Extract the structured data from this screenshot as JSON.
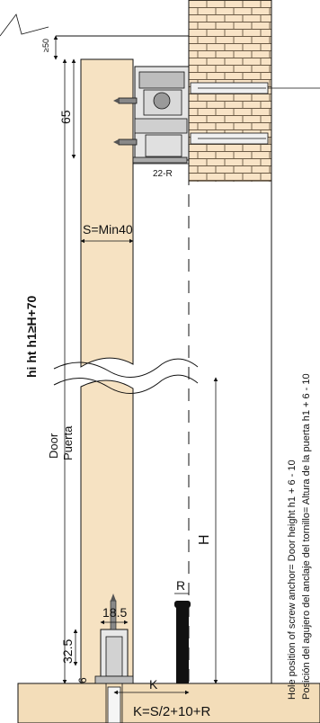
{
  "dimensions": {
    "top_gap": "≥50",
    "top_gap_small": "50",
    "bracket_height": "65",
    "offset": "22-R",
    "thickness": "S=Min40",
    "height_rule": "hi  ht h1≥H+70",
    "floor_gap": "R",
    "wall_height": "H",
    "guide_width": "18.5",
    "guide_height": "32.5",
    "guide_clearance": "6",
    "k_label": "K",
    "k_formula": "K=S/2+10+R"
  },
  "labels": {
    "door_en": "Door",
    "door_es": "Puerta",
    "note_en": "Hole position of screw anchor= Door height h1 + 6 - 10",
    "note_es": "Posición del agujero del anclaje del tornillo= Altura de la puerta h1  + 6 - 10"
  },
  "colors": {
    "door": "#f6e2c2",
    "floor": "#f3ddb9",
    "wall": "#f8e3c6",
    "line": "#111111",
    "metal": "#c8c8c8"
  }
}
